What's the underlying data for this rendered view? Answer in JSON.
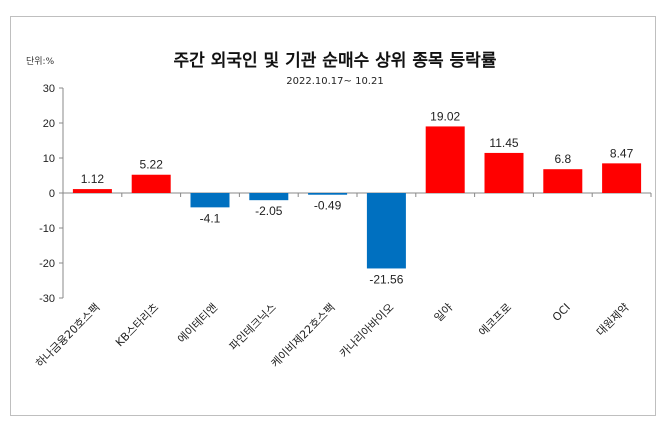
{
  "chart_data": {
    "type": "bar",
    "title": "주간 외국인 및 기관  순매수 상위 종목 등락률",
    "subtitle": "2022.10.17~ 10.21",
    "unit_label": "단위:%",
    "xlabel": "",
    "ylabel": "",
    "ylim": [
      -30,
      30
    ],
    "yticks": [
      30,
      20,
      10,
      0,
      -10,
      -20,
      -30
    ],
    "grid": false,
    "legend": "none",
    "categories": [
      "하나금융20호스팩",
      "KB스타리츠",
      "에이테티앤",
      "파인테크닉스",
      "케이비제22호스팩",
      "카나리아바이오",
      "일야",
      "에코프로",
      "OCI",
      "대원제약"
    ],
    "values": [
      1.12,
      5.22,
      -4.1,
      -2.05,
      -0.49,
      -21.56,
      19.02,
      11.45,
      6.8,
      8.47
    ],
    "data_labels": [
      "1.12",
      "5.22",
      "-4.1",
      "-2.05",
      "-0.49",
      "-21.56",
      "19.02",
      "11.45",
      "6.8",
      "8.47"
    ],
    "colors": {
      "positive": "#ff0000",
      "negative": "#0070c0"
    }
  }
}
